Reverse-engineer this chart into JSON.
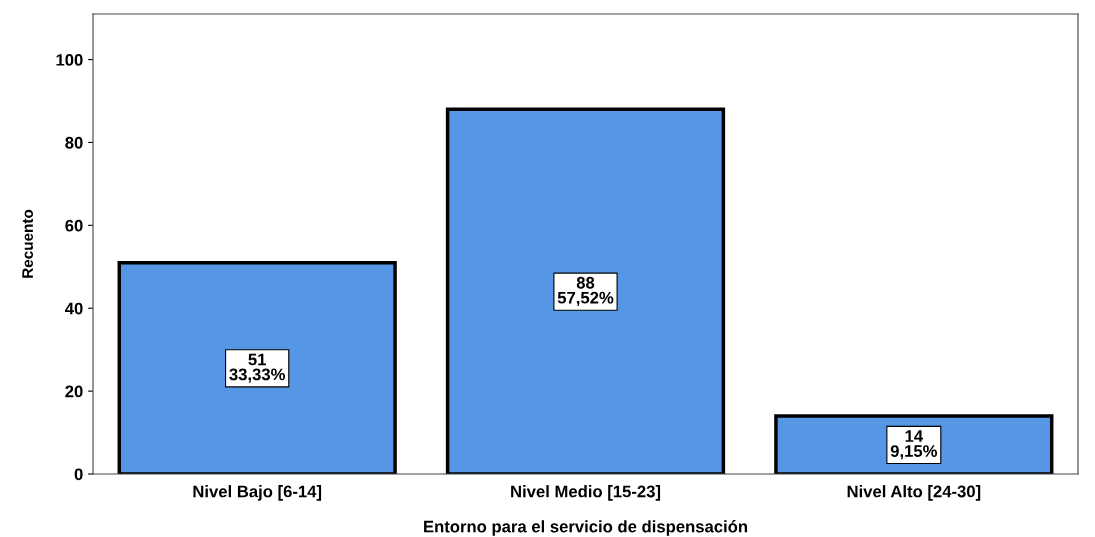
{
  "chart_data": {
    "type": "bar",
    "xlabel": "Entorno para el servicio de dispensación",
    "ylabel": "Recuento",
    "categories": [
      "Nivel Bajo [6-14]",
      "Nivel Medio [15-23]",
      "Nivel Alto [24-30]"
    ],
    "values": [
      51,
      88,
      14
    ],
    "value_labels": [
      "51\n33,33%",
      "88\n57,52%",
      "14\n9,15%"
    ],
    "color": "#5596e5",
    "ylim": [
      0,
      111
    ],
    "yticks": [
      0,
      20,
      40,
      60,
      80,
      100
    ],
    "grid": false
  }
}
